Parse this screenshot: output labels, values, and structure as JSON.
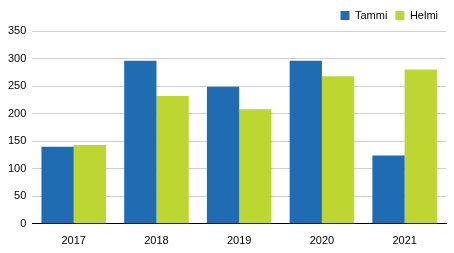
{
  "chart_data": {
    "type": "bar",
    "categories": [
      "2017",
      "2018",
      "2019",
      "2020",
      "2021"
    ],
    "series": [
      {
        "name": "Tammi",
        "color": "#1f6cb3",
        "values": [
          140,
          296,
          249,
          296,
          124
        ]
      },
      {
        "name": "Helmi",
        "color": "#bdd632",
        "values": [
          143,
          232,
          208,
          268,
          280
        ]
      }
    ],
    "ylim": [
      0,
      350
    ],
    "yticks": [
      0,
      50,
      100,
      150,
      200,
      250,
      300,
      350
    ],
    "grid": true,
    "legend": "upper right"
  }
}
